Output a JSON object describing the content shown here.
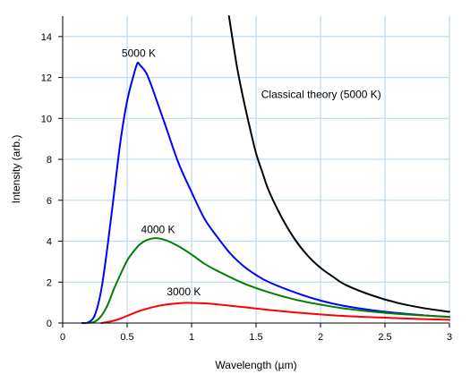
{
  "chart_data": {
    "type": "line",
    "xlabel": "Wavelength (µm)",
    "ylabel": "Intensity (arb.)",
    "xlim": [
      0,
      3
    ],
    "ylim": [
      0,
      15
    ],
    "x_ticks": [
      "0",
      "0.5",
      "1",
      "1.5",
      "2",
      "2.5",
      "3"
    ],
    "y_ticks": [
      "0",
      "2",
      "4",
      "6",
      "8",
      "10",
      "12",
      "14"
    ],
    "grid": true,
    "legend": "none",
    "series": [
      {
        "name": "5000 K",
        "color": "#0000ff",
        "x": [
          0.15,
          0.2,
          0.25,
          0.3,
          0.35,
          0.4,
          0.45,
          0.5,
          0.55,
          0.58,
          0.6,
          0.65,
          0.7,
          0.8,
          0.9,
          1.0,
          1.1,
          1.2,
          1.3,
          1.4,
          1.5,
          1.6,
          1.8,
          2.0,
          2.2,
          2.5,
          2.8,
          3.0
        ],
        "values": [
          0.0,
          0.04,
          0.4,
          1.64,
          3.85,
          6.4,
          8.95,
          10.85,
          12.1,
          12.7,
          12.6,
          12.2,
          11.4,
          9.6,
          7.8,
          6.4,
          5.1,
          4.2,
          3.4,
          2.8,
          2.35,
          2.0,
          1.5,
          1.1,
          0.82,
          0.55,
          0.38,
          0.3
        ]
      },
      {
        "name": "4000 K",
        "color": "#008000",
        "x": [
          0.2,
          0.25,
          0.3,
          0.35,
          0.4,
          0.45,
          0.5,
          0.55,
          0.6,
          0.65,
          0.72,
          0.8,
          0.9,
          1.0,
          1.1,
          1.2,
          1.4,
          1.6,
          1.8,
          2.0,
          2.2,
          2.5,
          2.8,
          3.0
        ],
        "values": [
          0.0,
          0.07,
          0.35,
          0.9,
          1.7,
          2.4,
          3.05,
          3.5,
          3.85,
          4.05,
          4.15,
          4.05,
          3.75,
          3.35,
          2.9,
          2.55,
          1.95,
          1.5,
          1.15,
          0.9,
          0.7,
          0.5,
          0.37,
          0.3
        ]
      },
      {
        "name": "3000 K",
        "color": "#ff0000",
        "x": [
          0.3,
          0.35,
          0.4,
          0.45,
          0.5,
          0.55,
          0.6,
          0.7,
          0.8,
          0.9,
          0.97,
          1.1,
          1.2,
          1.4,
          1.6,
          1.8,
          2.0,
          2.2,
          2.5,
          2.8,
          3.0
        ],
        "values": [
          0.0,
          0.05,
          0.12,
          0.22,
          0.35,
          0.48,
          0.6,
          0.78,
          0.9,
          0.97,
          0.99,
          0.96,
          0.91,
          0.78,
          0.64,
          0.52,
          0.42,
          0.34,
          0.26,
          0.19,
          0.16
        ]
      },
      {
        "name": "Classical theory (5000 K)",
        "color": "#000000",
        "x": [
          1.29,
          1.35,
          1.4,
          1.45,
          1.5,
          1.55,
          1.6,
          1.7,
          1.8,
          1.9,
          2.0,
          2.1,
          2.2,
          2.4,
          2.6,
          2.8,
          3.0
        ],
        "values": [
          15.0,
          12.6,
          11.0,
          9.6,
          8.3,
          7.35,
          6.45,
          5.15,
          4.1,
          3.3,
          2.7,
          2.25,
          1.85,
          1.35,
          0.98,
          0.73,
          0.55
        ]
      }
    ],
    "annotations": [
      {
        "text": "5000 K",
        "x": 0.59,
        "y": 13.0
      },
      {
        "text": "4000 K",
        "x": 0.74,
        "y": 4.4
      },
      {
        "text": "3000 K",
        "x": 0.94,
        "y": 1.35
      },
      {
        "text": "Classical theory (5000 K)",
        "x": 1.54,
        "y": 11.0
      }
    ]
  }
}
